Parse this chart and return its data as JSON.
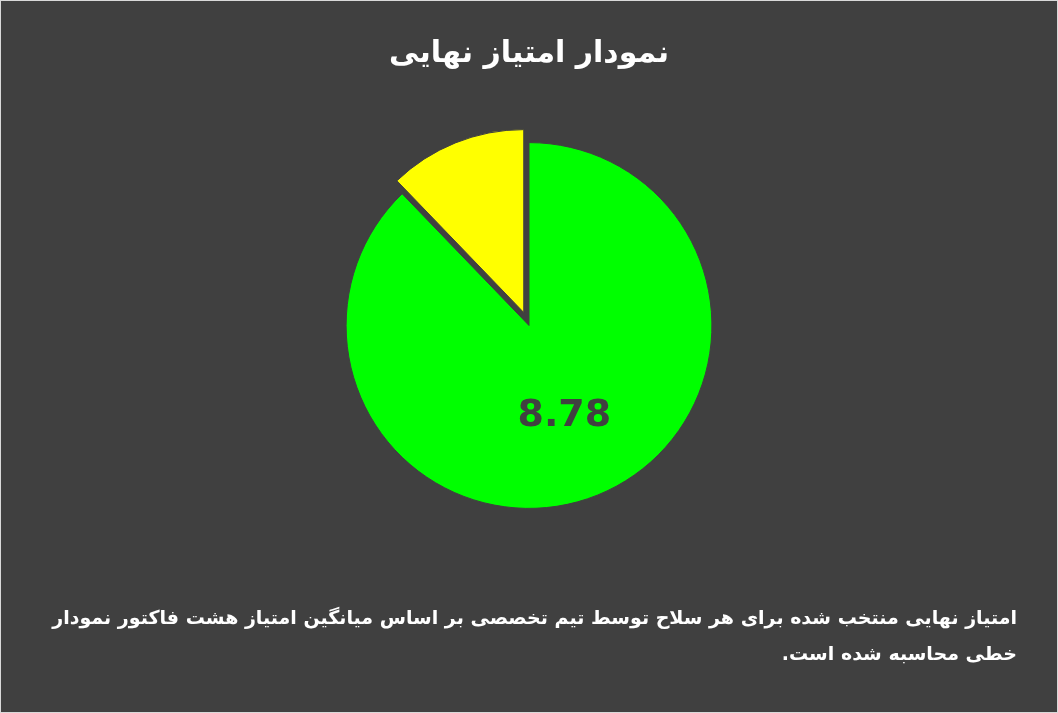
{
  "chart_data": {
    "type": "pie",
    "title": "نمودار امتیاز نهایی",
    "categories": [
      null,
      null
    ],
    "values": [
      8.78,
      1.22
    ],
    "value_labels": [
      "8.78",
      null
    ],
    "colors": [
      "#00ff00",
      "#ffff00"
    ],
    "annotations": [
      "امتیاز نهایی منتخب شده برای هر سلاح توسط تیم تخصصی بر اساس میانگین امتیاز هشت فاکتور نمودار خطی محاسبه شده است."
    ]
  }
}
